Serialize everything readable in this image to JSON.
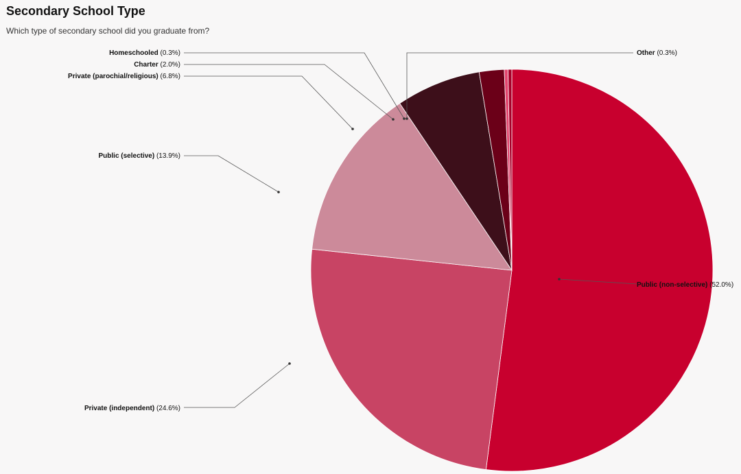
{
  "chart_data": {
    "type": "pie",
    "title": "Secondary School Type",
    "subtitle": "Which type of secondary school did you graduate from?",
    "slices": [
      {
        "name": "Public (non-selective)",
        "value": 52.0,
        "label_pct": "(52.0%)",
        "color": "#c8002e"
      },
      {
        "name": "Private (independent)",
        "value": 24.6,
        "label_pct": "(24.6%)",
        "color": "#c84464"
      },
      {
        "name": "Public (selective)",
        "value": 13.9,
        "label_pct": "(13.9%)",
        "color": "#cc8a9a"
      },
      {
        "name": "Private (parochial/religious)",
        "value": 6.8,
        "label_pct": "(6.8%)",
        "color": "#3d0f1a"
      },
      {
        "name": "Charter",
        "value": 2.0,
        "label_pct": "(2.0%)",
        "color": "#6b0018"
      },
      {
        "name": "Homeschooled",
        "value": 0.3,
        "label_pct": "(0.3%)",
        "color": "#e2456e"
      },
      {
        "name": "Other",
        "value": 0.3,
        "label_pct": "(0.3%)",
        "color": "#a8002a"
      }
    ]
  }
}
